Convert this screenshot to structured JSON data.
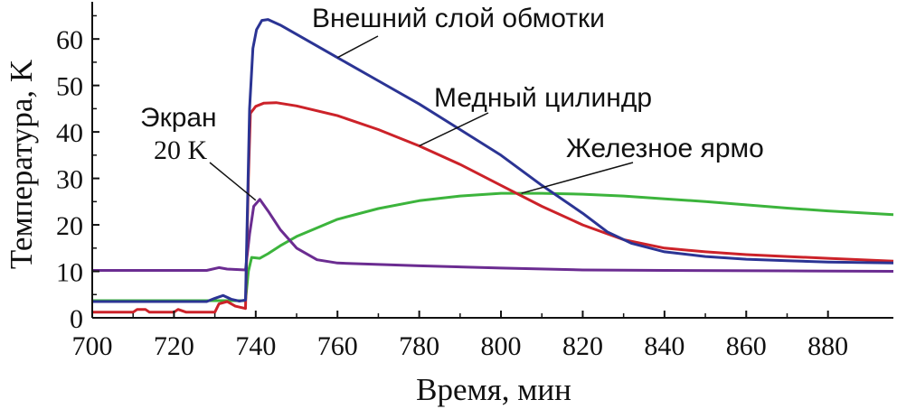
{
  "chart_data": {
    "type": "line",
    "title": "",
    "xlabel": "Время, мин",
    "ylabel": "Температура, K",
    "xlim": [
      700,
      896
    ],
    "ylim": [
      0,
      68
    ],
    "xticks": [
      700,
      720,
      740,
      760,
      780,
      800,
      820,
      840,
      860,
      880
    ],
    "yticks": [
      0,
      10,
      20,
      30,
      40,
      50,
      60
    ],
    "grid": false,
    "legend": "none",
    "series": [
      {
        "name": "Внешний слой обмотки",
        "color": "#2b3494",
        "points": [
          [
            700,
            3.5
          ],
          [
            728,
            3.5
          ],
          [
            730,
            4.2
          ],
          [
            732,
            4.8
          ],
          [
            734,
            4.0
          ],
          [
            736,
            3.6
          ],
          [
            737.5,
            3.8
          ],
          [
            738.5,
            45
          ],
          [
            739.3,
            58
          ],
          [
            740.2,
            62
          ],
          [
            741.5,
            64
          ],
          [
            743,
            64.2
          ],
          [
            746,
            63
          ],
          [
            752,
            60
          ],
          [
            760,
            56
          ],
          [
            770,
            51
          ],
          [
            780,
            46
          ],
          [
            790,
            40.5
          ],
          [
            800,
            35
          ],
          [
            810,
            28.5
          ],
          [
            820,
            22.5
          ],
          [
            826,
            18.5
          ],
          [
            832,
            16
          ],
          [
            840,
            14.2
          ],
          [
            850,
            13.2
          ],
          [
            860,
            12.6
          ],
          [
            870,
            12.3
          ],
          [
            880,
            12
          ],
          [
            896,
            11.8
          ]
        ]
      },
      {
        "name": "Медный цилиндр",
        "color": "#cc2229",
        "points": [
          [
            700,
            1.2
          ],
          [
            710,
            1.2
          ],
          [
            711,
            1.8
          ],
          [
            713,
            1.8
          ],
          [
            714,
            1.2
          ],
          [
            720,
            1.2
          ],
          [
            721,
            1.8
          ],
          [
            723,
            1.2
          ],
          [
            730,
            1.2
          ],
          [
            731,
            3
          ],
          [
            733,
            3.5
          ],
          [
            735,
            2.5
          ],
          [
            737.5,
            2
          ],
          [
            738.2,
            30
          ],
          [
            738.7,
            44
          ],
          [
            740,
            45.5
          ],
          [
            742,
            46.2
          ],
          [
            745,
            46.3
          ],
          [
            750,
            45.6
          ],
          [
            760,
            43.5
          ],
          [
            770,
            40.5
          ],
          [
            780,
            37
          ],
          [
            790,
            33
          ],
          [
            800,
            28.5
          ],
          [
            810,
            24
          ],
          [
            820,
            20
          ],
          [
            830,
            16.8
          ],
          [
            840,
            15
          ],
          [
            850,
            14.2
          ],
          [
            860,
            13.6
          ],
          [
            870,
            13.2
          ],
          [
            880,
            12.8
          ],
          [
            896,
            12.2
          ]
        ]
      },
      {
        "name": "Железное ярмо",
        "color": "#3cb43c",
        "points": [
          [
            700,
            3.7
          ],
          [
            737.5,
            3.7
          ],
          [
            738.2,
            10
          ],
          [
            739,
            13
          ],
          [
            741,
            12.8
          ],
          [
            743,
            13.8
          ],
          [
            746,
            15.5
          ],
          [
            750,
            17.5
          ],
          [
            760,
            21.2
          ],
          [
            770,
            23.5
          ],
          [
            780,
            25.2
          ],
          [
            790,
            26.2
          ],
          [
            800,
            26.8
          ],
          [
            810,
            26.8
          ],
          [
            820,
            26.6
          ],
          [
            830,
            26.2
          ],
          [
            840,
            25.6
          ],
          [
            850,
            25
          ],
          [
            860,
            24.3
          ],
          [
            870,
            23.6
          ],
          [
            880,
            23
          ],
          [
            896,
            22.2
          ]
        ]
      },
      {
        "name": "Экран 20 K",
        "color": "#6b2c91",
        "points": [
          [
            700,
            10.2
          ],
          [
            728,
            10.2
          ],
          [
            731,
            10.8
          ],
          [
            733,
            10.5
          ],
          [
            737.5,
            10.3
          ],
          [
            738.5,
            18
          ],
          [
            739.5,
            24
          ],
          [
            741,
            25.5
          ],
          [
            743,
            23
          ],
          [
            746,
            19
          ],
          [
            750,
            15
          ],
          [
            755,
            12.5
          ],
          [
            760,
            11.8
          ],
          [
            780,
            11.2
          ],
          [
            800,
            10.7
          ],
          [
            820,
            10.3
          ],
          [
            840,
            10.2
          ],
          [
            870,
            10.1
          ],
          [
            896,
            10
          ]
        ]
      }
    ],
    "annotations": [
      {
        "text": "Внешний слой обмотки",
        "series": 0
      },
      {
        "text": "Медный цилиндр",
        "series": 1
      },
      {
        "text": "Железное ярмо",
        "series": 2
      },
      {
        "text_line1": "Экран",
        "text_line2": "20 K",
        "series": 3
      }
    ]
  }
}
